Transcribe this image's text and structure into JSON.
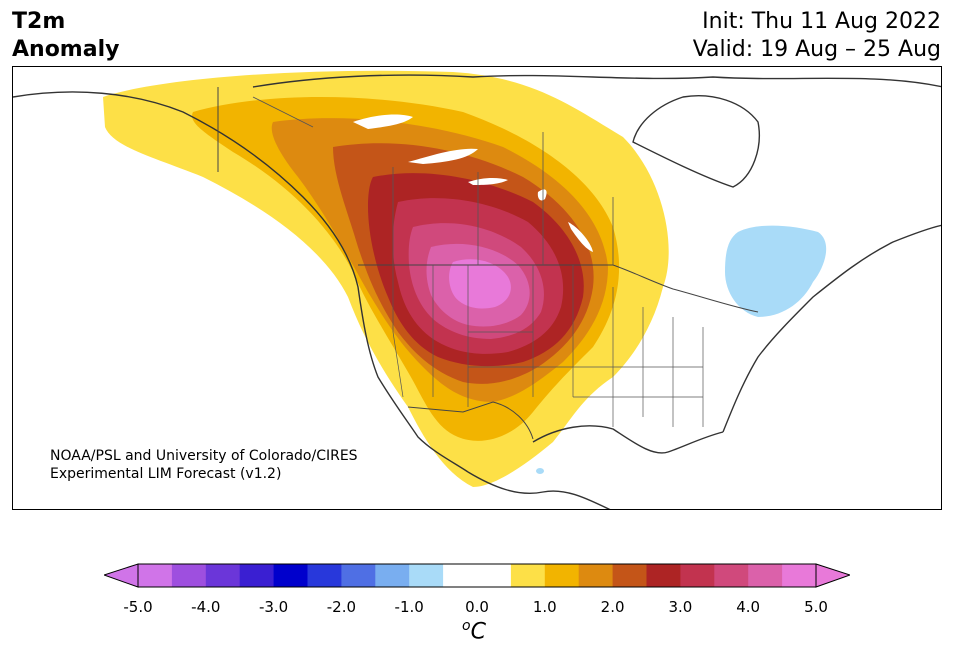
{
  "header": {
    "title_line1": "T2m",
    "title_line2": "Anomaly",
    "init": "Init: Thu 11 Aug 2022",
    "valid": "Valid: 19 Aug – 25 Aug"
  },
  "credit": {
    "line1": "NOAA/PSL and University of Colorado/CIRES",
    "line2": "Experimental LIM Forecast (v1.2)"
  },
  "colorbar": {
    "unit_prefix": "o",
    "unit": "C",
    "ticks": [
      "-5.0",
      "-4.0",
      "-3.0",
      "-2.0",
      "-1.0",
      "0.0",
      "1.0",
      "2.0",
      "3.0",
      "4.0",
      "5.0"
    ],
    "colors": [
      "#d074e8",
      "#9e4fdf",
      "#6b36d9",
      "#3a1fd2",
      "#0000cc",
      "#2838db",
      "#4f6fe4",
      "#79aef0",
      "#a9dbf8",
      "#ffffff",
      "#ffffff",
      "#fde047",
      "#f2b400",
      "#dd8a10",
      "#c45518",
      "#ad2424",
      "#c2334f",
      "#d0497c",
      "#db61aa",
      "#e879d9"
    ],
    "under_color": "#d074e8",
    "over_color": "#e879d9"
  },
  "map": {
    "region": "North America",
    "anomaly_maximum_c": 5.0
  }
}
